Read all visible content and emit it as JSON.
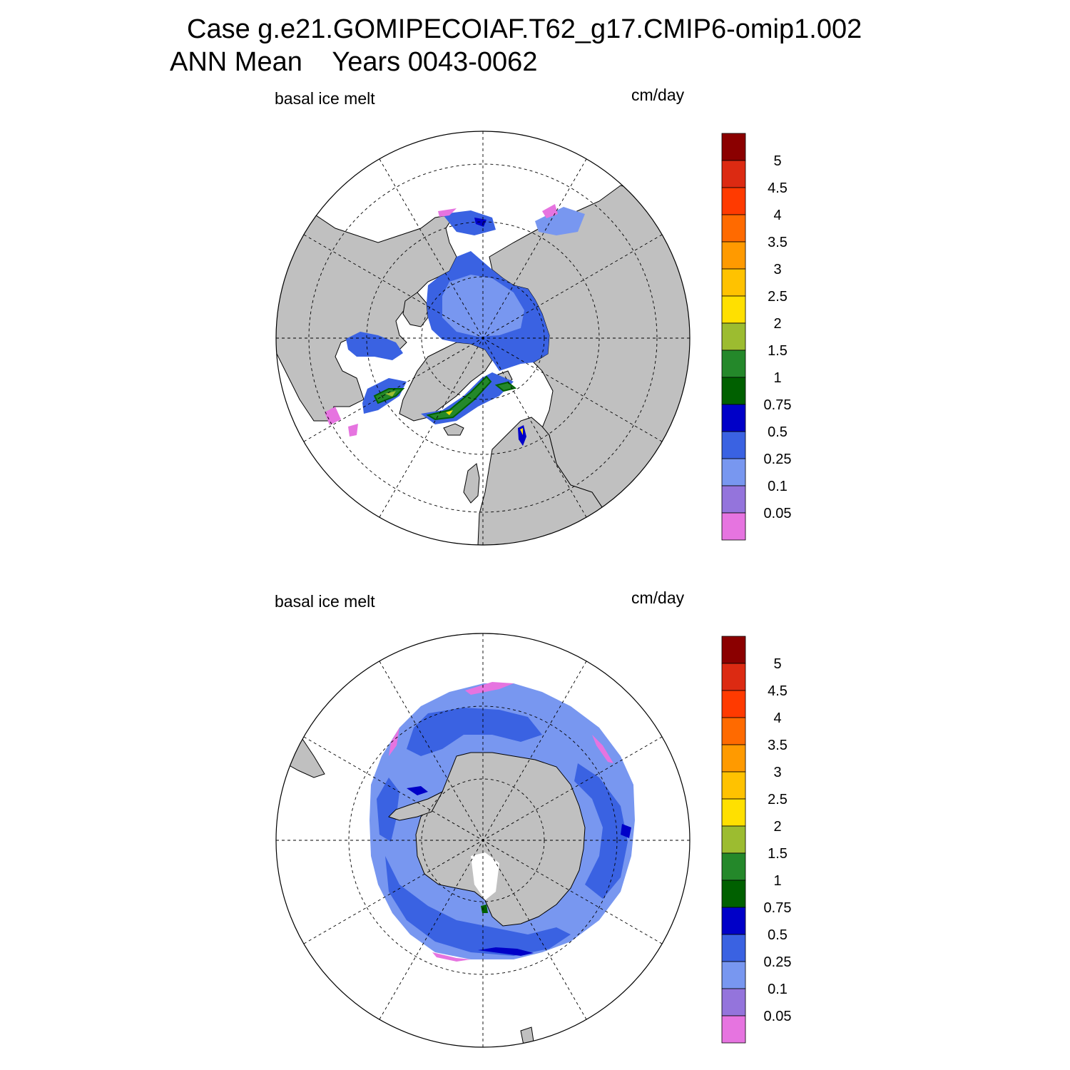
{
  "title": {
    "line1": "Case g.e21.GOMIPECOIAF.T62_g17.CMIP6-omip1.002",
    "line2": "ANN Mean    Years 0043-0062"
  },
  "panels": [
    {
      "id": "north",
      "variable": "basal ice melt",
      "units": "cm/day"
    },
    {
      "id": "south",
      "variable": "basal ice melt",
      "units": "cm/day"
    }
  ],
  "colorbar": {
    "labels": [
      "5",
      "4.5",
      "4",
      "3.5",
      "3",
      "2.5",
      "2",
      "1.5",
      "1",
      "0.75",
      "0.5",
      "0.25",
      "0.1",
      "0.05"
    ],
    "colors_top_to_bottom": [
      "#8b0000",
      "#dc2a12",
      "#ff3a00",
      "#ff6a00",
      "#ff9a00",
      "#ffc200",
      "#ffe000",
      "#9cbc30",
      "#24882a",
      "#006000",
      "#0000c8",
      "#3a62e2",
      "#7897f0",
      "#9474dc",
      "#e674e0"
    ]
  },
  "colors": {
    "land": "#c0c0c0",
    "ocean_no_ice": "#ffffff",
    "ice_low": "#7897f0",
    "ice_mid": "#3a62e2",
    "ice_high": "#0000c8"
  }
}
